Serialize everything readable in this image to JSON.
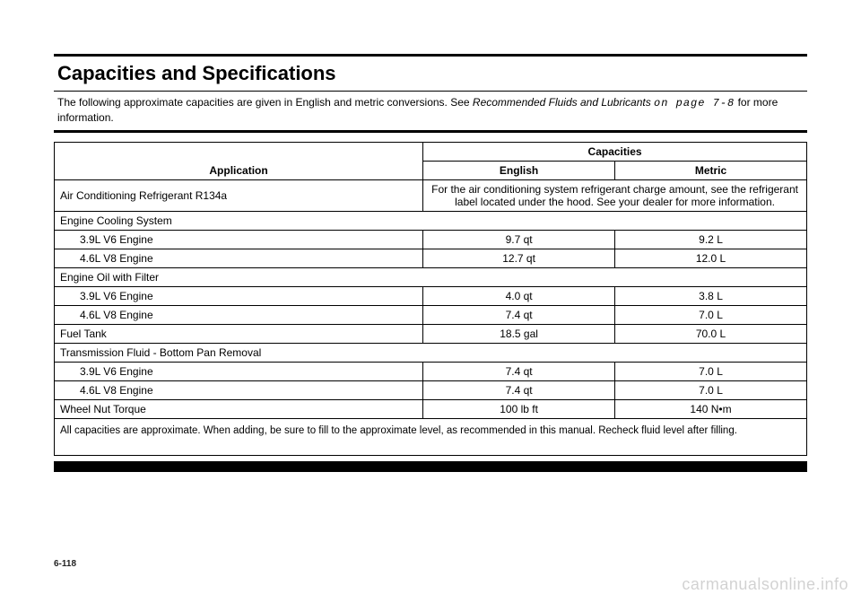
{
  "header": {
    "title": "Capacities and Specifications",
    "intro_pre": "The following approximate capacities are given in English and metric conversions. See ",
    "intro_italic": "Recommended Fluids and Lubricants ",
    "intro_mono": "on page 7-8",
    "intro_post": " for more information."
  },
  "table": {
    "col_app": "Application",
    "col_cap": "Capacities",
    "col_eng": "English",
    "col_met": "Metric",
    "rows": [
      {
        "app": "Air Conditioning Refrigerant R134a",
        "note": "For the air conditioning system refrigerant charge amount, see the refrigerant label located under the hood. See your dealer for more information."
      },
      {
        "section": "Engine Cooling System"
      },
      {
        "app_indent": "3.9L V6 Engine",
        "eng": "9.7 qt",
        "met": "9.2 L"
      },
      {
        "app_indent": "4.6L V8 Engine",
        "eng": "12.7 qt",
        "met": "12.0 L"
      },
      {
        "section": "Engine Oil with Filter"
      },
      {
        "app_indent": "3.9L V6 Engine",
        "eng": "4.0 qt",
        "met": "3.8 L"
      },
      {
        "app_indent": "4.6L V8 Engine",
        "eng": "7.4 qt",
        "met": "7.0 L"
      },
      {
        "app": "Fuel Tank",
        "eng": "18.5 gal",
        "met": "70.0 L"
      },
      {
        "section": "Transmission Fluid - Bottom Pan Removal"
      },
      {
        "app_indent": "3.9L V6 Engine",
        "eng": "7.4 qt",
        "met": "7.0 L"
      },
      {
        "app_indent": "4.6L V8 Engine",
        "eng": "7.4 qt",
        "met": "7.0 L"
      },
      {
        "app": "Wheel Nut Torque",
        "eng": "100 lb ft",
        "met": "140 N•m"
      }
    ],
    "footnote": "All capacities are approximate. When adding, be sure to fill to the approximate level, as recommended in this manual. Recheck fluid level after filling."
  },
  "page_num": "6-118",
  "watermark": "carmanualsonline.info"
}
